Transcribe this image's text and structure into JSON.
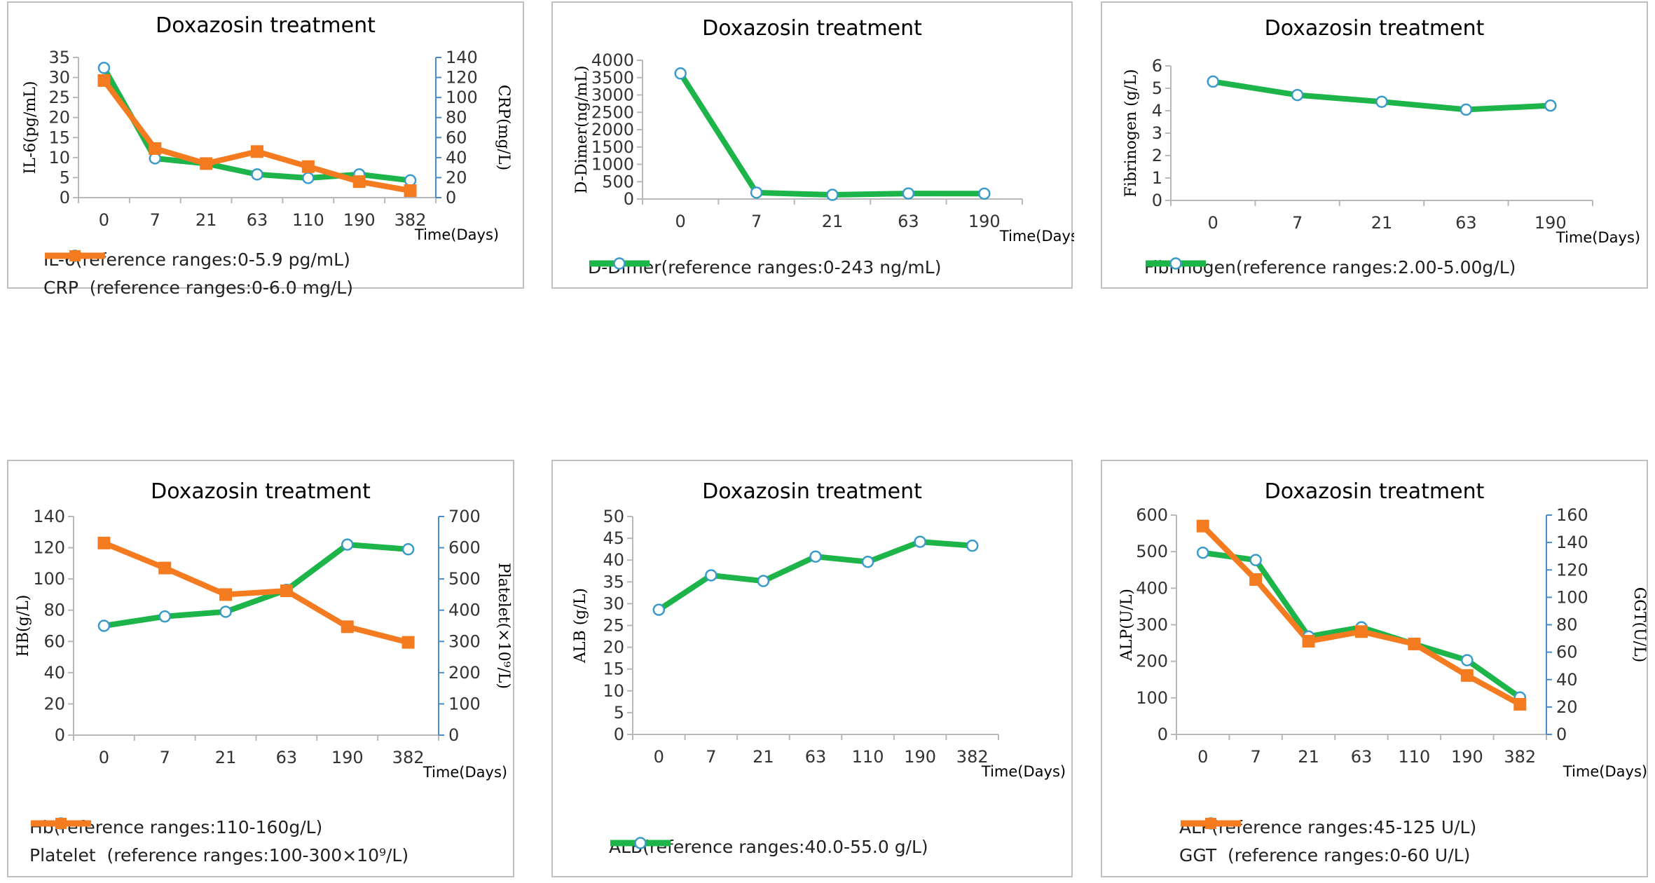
{
  "chart_data": [
    {
      "type": "line",
      "title": "Doxazosin treatment",
      "categories": [
        "0",
        "7",
        "21",
        "63",
        "110",
        "190",
        "382"
      ],
      "xlabel": "Time(Days)",
      "ylabel": "IL-6(pg/mL)",
      "y2label": "CRP(mg/L)",
      "ylim": [
        0,
        35
      ],
      "yticks": [
        0,
        5,
        10,
        15,
        20,
        25,
        30,
        35
      ],
      "y2lim": [
        0,
        140
      ],
      "y2ticks": [
        0,
        20,
        40,
        60,
        80,
        100,
        120,
        140
      ],
      "series": [
        {
          "name": "IL-6(reference ranges:0-5.9 pg/mL)",
          "axis": "left",
          "marker": "circle",
          "color": "#1db54a",
          "values": [
            32.4,
            9.8,
            8.5,
            5.8,
            4.9,
            5.8,
            4.3
          ]
        },
        {
          "name": "CRP  (reference ranges:0-6.0 mg/L)",
          "axis": "right",
          "marker": "square",
          "color": "#f47b20",
          "values": [
            117,
            49,
            34,
            46,
            31,
            16,
            7
          ]
        }
      ]
    },
    {
      "type": "line",
      "title": "Doxazosin treatment",
      "categories": [
        "0",
        "7",
        "21",
        "63",
        "190"
      ],
      "xlabel": "Time(Days)",
      "ylabel": "D-Dimer(ng/mL)",
      "ylim": [
        0,
        4000
      ],
      "yticks": [
        0,
        500,
        1000,
        1500,
        2000,
        2500,
        3000,
        3500,
        4000
      ],
      "series": [
        {
          "name": "D-Dimer(reference ranges:0-243 ng/mL)",
          "axis": "left",
          "marker": "circle",
          "color": "#1db54a",
          "values": [
            3620,
            185,
            120,
            160,
            155
          ]
        }
      ]
    },
    {
      "type": "line",
      "title": "Doxazosin treatment",
      "categories": [
        "0",
        "7",
        "21",
        "63",
        "190"
      ],
      "xlabel": "Time(Days)",
      "ylabel": "Fibrinogen (g/L)",
      "ylim": [
        0,
        6
      ],
      "yticks": [
        0,
        1,
        2,
        3,
        4,
        5,
        6
      ],
      "series": [
        {
          "name": "Fibrinogen(reference ranges:2.00-5.00g/L)",
          "axis": "left",
          "marker": "circle",
          "color": "#1db54a",
          "values": [
            5.3,
            4.7,
            4.4,
            4.05,
            4.23
          ]
        }
      ]
    },
    {
      "type": "line",
      "title": "Doxazosin treatment",
      "categories": [
        "0",
        "7",
        "21",
        "63",
        "190",
        "382"
      ],
      "xlabel": "Time(Days)",
      "ylabel": "HB(g/L)",
      "y2label": "Platelet(×10⁹/L)",
      "ylim": [
        0,
        140
      ],
      "yticks": [
        0,
        20,
        40,
        60,
        80,
        100,
        120,
        140
      ],
      "y2lim": [
        0,
        700
      ],
      "y2ticks": [
        0,
        100,
        200,
        300,
        400,
        500,
        600,
        700
      ],
      "series": [
        {
          "name": "Hb(reference ranges:110-160g/L)",
          "axis": "left",
          "marker": "circle",
          "color": "#1db54a",
          "values": [
            70,
            76,
            79,
            93,
            122,
            119
          ]
        },
        {
          "name": "Platelet  (reference ranges:100-300×10⁹/L)",
          "axis": "right",
          "marker": "square",
          "color": "#f47b20",
          "values": [
            615,
            535,
            450,
            462,
            347,
            297
          ]
        }
      ]
    },
    {
      "type": "line",
      "title": "Doxazosin treatment",
      "categories": [
        "0",
        "7",
        "21",
        "63",
        "110",
        "190",
        "382"
      ],
      "xlabel": "Time(Days)",
      "ylabel": "ALB (g/L)",
      "ylim": [
        0,
        50
      ],
      "yticks": [
        0,
        5,
        10,
        15,
        20,
        25,
        30,
        35,
        40,
        45,
        50
      ],
      "series": [
        {
          "name": "ALB(reference ranges:40.0-55.0 g/L)",
          "axis": "left",
          "marker": "circle",
          "color": "#1db54a",
          "values": [
            28.6,
            36.5,
            35.2,
            40.8,
            39.6,
            44.2,
            43.3
          ]
        }
      ]
    },
    {
      "type": "line",
      "title": "Doxazosin treatment",
      "categories": [
        "0",
        "7",
        "21",
        "63",
        "110",
        "190",
        "382"
      ],
      "xlabel": "Time(Days)",
      "ylabel": "ALP(U/L)",
      "y2label": "GGT(U/L)",
      "ylim": [
        0,
        600
      ],
      "yticks": [
        0,
        100,
        200,
        300,
        400,
        500,
        600
      ],
      "y2lim": [
        0,
        160
      ],
      "y2ticks": [
        0,
        20,
        40,
        60,
        80,
        100,
        120,
        140,
        160
      ],
      "series": [
        {
          "name": "ALP(reference ranges:45-125 U/L)",
          "axis": "left",
          "marker": "circle",
          "color": "#1db54a",
          "values": [
            497,
            477,
            268,
            293,
            247,
            203,
            101
          ]
        },
        {
          "name": "GGT  (reference ranges:0-60 U/L)",
          "axis": "right",
          "marker": "square",
          "color": "#f47b20",
          "values": [
            152,
            113,
            68,
            75,
            66,
            43,
            22
          ]
        }
      ]
    }
  ]
}
